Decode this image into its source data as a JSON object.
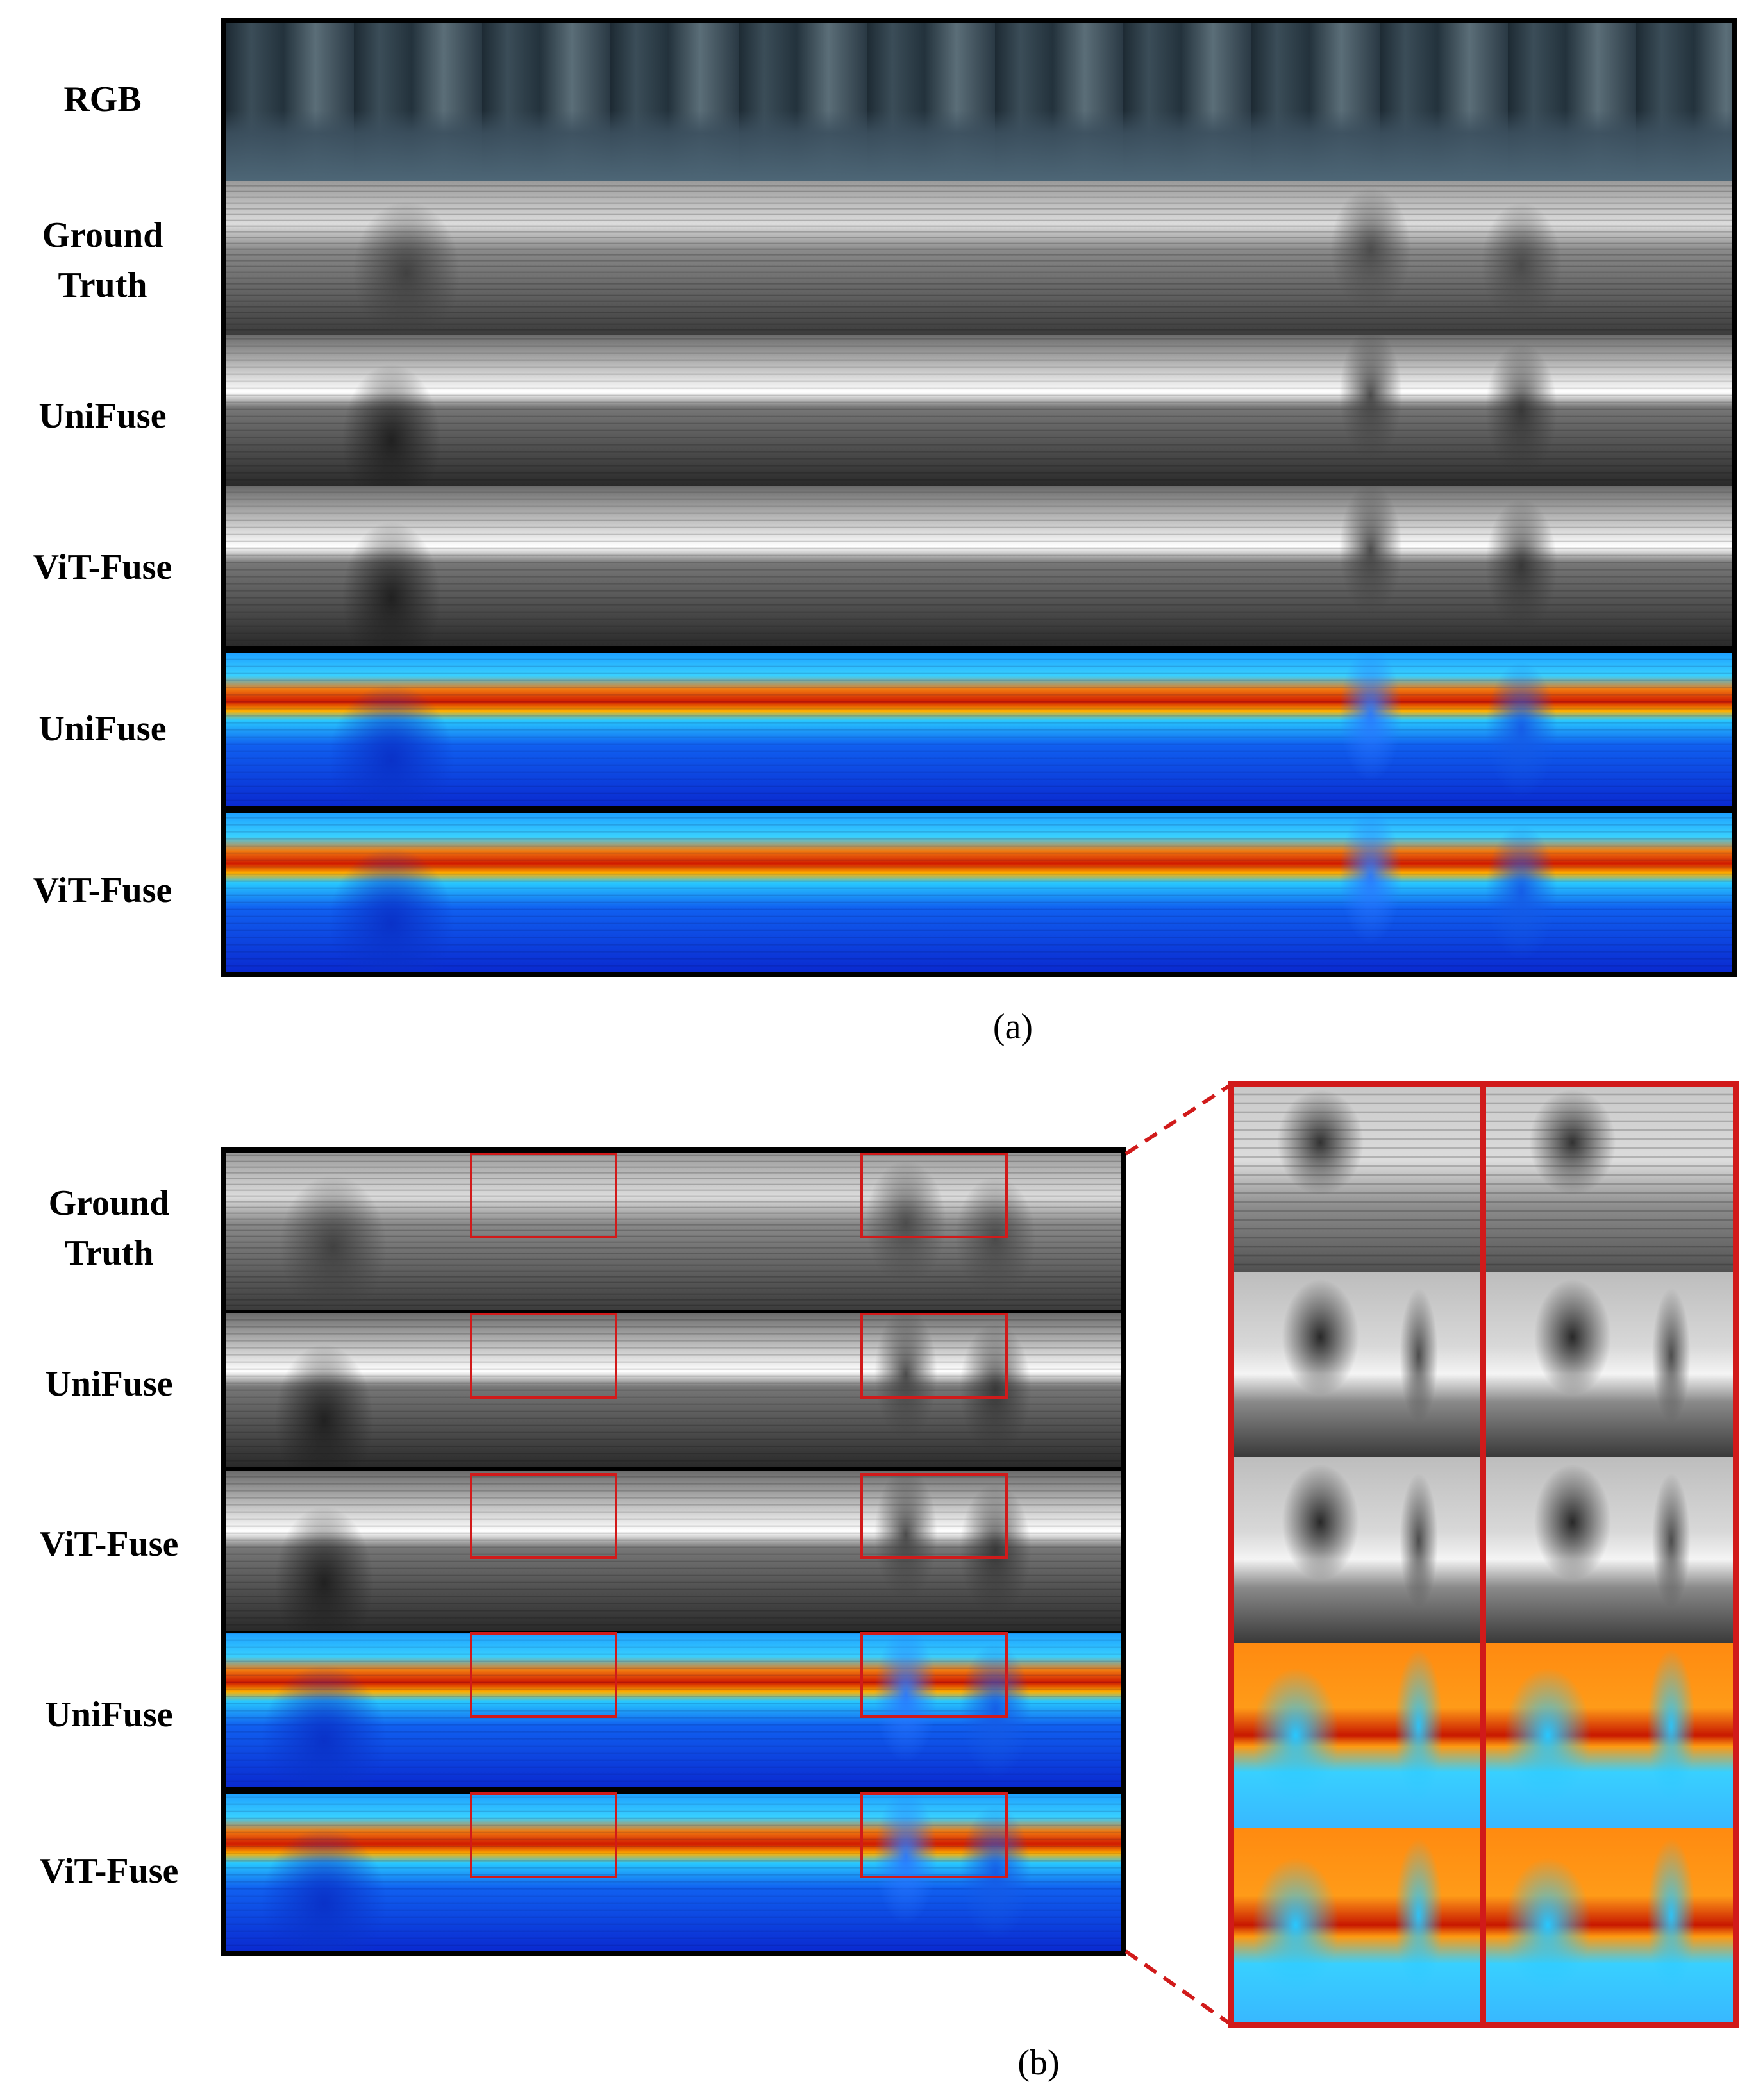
{
  "figure": {
    "panel_a": {
      "rows": [
        {
          "label": "RGB",
          "kind": "rgb"
        },
        {
          "label": "Ground Truth",
          "kind": "gray-gt"
        },
        {
          "label": "UniFuse",
          "kind": "gray-pred"
        },
        {
          "label": "ViT-Fuse",
          "kind": "gray-pred"
        },
        {
          "label": "UniFuse",
          "kind": "jet"
        },
        {
          "label": "ViT-Fuse",
          "kind": "jet"
        }
      ],
      "caption": "(a)"
    },
    "panel_b": {
      "rows": [
        {
          "label": "Ground Truth",
          "kind": "gray-gt"
        },
        {
          "label": "UniFuse",
          "kind": "gray-pred"
        },
        {
          "label": "ViT-Fuse",
          "kind": "gray-pred"
        },
        {
          "label": "UniFuse",
          "kind": "jet"
        },
        {
          "label": "ViT-Fuse",
          "kind": "jet"
        }
      ],
      "caption": "(b)"
    },
    "colors": {
      "highlight": "#d11a1a",
      "frame": "#000000"
    }
  }
}
